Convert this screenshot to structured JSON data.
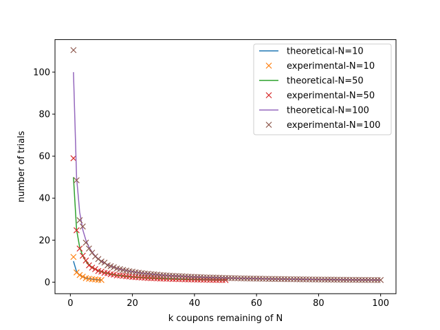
{
  "chart_data": {
    "type": "line",
    "title": "",
    "xlabel": "k coupons remaining of N",
    "ylabel": "number of trials",
    "xlim": [
      -4.95,
      104.95
    ],
    "ylim": [
      -5.5,
      115.5
    ],
    "xticks": [
      0,
      20,
      40,
      60,
      80,
      100
    ],
    "yticks": [
      0,
      20,
      40,
      60,
      80,
      100
    ],
    "grid": false,
    "legend_placement": "upper right",
    "series": [
      {
        "name": "theoretical-N=10",
        "kind": "line",
        "color": "#1f77b4",
        "rule": "N/k",
        "N": 10,
        "x_range": [
          1,
          10
        ]
      },
      {
        "name": "experimental-N=10",
        "kind": "scatter",
        "marker": "x",
        "color": "#ff7f0e",
        "x": [
          1,
          2,
          3,
          4,
          5,
          6,
          7,
          8,
          9,
          10
        ],
        "y": [
          12.0,
          4.6,
          3.4,
          2.6,
          1.9,
          1.6,
          1.4,
          1.3,
          1.1,
          1.0
        ]
      },
      {
        "name": "theoretical-N=50",
        "kind": "line",
        "color": "#2ca02c",
        "rule": "N/k",
        "N": 50,
        "x_range": [
          1,
          50
        ]
      },
      {
        "name": "experimental-N=50",
        "kind": "scatter",
        "marker": "x",
        "color": "#d62728",
        "x": [
          1,
          2,
          3,
          4,
          5,
          6,
          7,
          8,
          9,
          10,
          11,
          12,
          13,
          14,
          15,
          16,
          17,
          18,
          19,
          20,
          21,
          22,
          23,
          24,
          25,
          26,
          27,
          28,
          29,
          30,
          31,
          32,
          33,
          34,
          35,
          36,
          37,
          38,
          39,
          40,
          41,
          42,
          43,
          44,
          45,
          46,
          47,
          48,
          49,
          50
        ],
        "y": [
          59.0,
          24.7,
          16.0,
          12.6,
          10.3,
          8.0,
          6.9,
          6.2,
          5.3,
          5.0,
          4.4,
          4.3,
          3.8,
          3.6,
          3.2,
          3.2,
          3.0,
          2.8,
          2.7,
          2.5,
          2.4,
          2.3,
          2.2,
          2.1,
          2.0,
          1.9,
          1.9,
          1.8,
          1.7,
          1.7,
          1.6,
          1.6,
          1.5,
          1.5,
          1.4,
          1.4,
          1.35,
          1.3,
          1.3,
          1.25,
          1.2,
          1.2,
          1.15,
          1.15,
          1.1,
          1.1,
          1.05,
          1.05,
          1.0,
          1.0
        ]
      },
      {
        "name": "theoretical-N=100",
        "kind": "line",
        "color": "#9467bd",
        "rule": "N/k",
        "N": 100,
        "x_range": [
          1,
          100
        ]
      },
      {
        "name": "experimental-N=100",
        "kind": "scatter",
        "marker": "x",
        "color": "#8c564b",
        "x": [
          1,
          2,
          3,
          4,
          5,
          6,
          7,
          8,
          9,
          10,
          11,
          12,
          13,
          14,
          15,
          16,
          17,
          18,
          19,
          20,
          21,
          22,
          23,
          24,
          25,
          26,
          27,
          28,
          29,
          30,
          31,
          32,
          33,
          34,
          35,
          36,
          37,
          38,
          39,
          40,
          41,
          42,
          43,
          44,
          45,
          46,
          47,
          48,
          49,
          50,
          51,
          52,
          53,
          54,
          55,
          56,
          57,
          58,
          59,
          60,
          61,
          62,
          63,
          64,
          65,
          66,
          67,
          68,
          69,
          70,
          71,
          72,
          73,
          74,
          75,
          76,
          77,
          78,
          79,
          80,
          81,
          82,
          83,
          84,
          85,
          86,
          87,
          88,
          89,
          90,
          91,
          92,
          93,
          94,
          95,
          96,
          97,
          98,
          99,
          100
        ],
        "y": [
          110.5,
          48.5,
          29.5,
          26.5,
          18.8,
          16.0,
          14.0,
          12.2,
          11.0,
          9.8,
          9.3,
          8.0,
          7.6,
          7.1,
          6.5,
          6.2,
          5.8,
          5.5,
          5.2,
          5.0,
          4.7,
          4.5,
          4.3,
          4.1,
          4.0,
          3.8,
          3.7,
          3.6,
          3.4,
          3.3,
          3.2,
          3.1,
          3.0,
          2.9,
          2.85,
          2.8,
          2.7,
          2.6,
          2.55,
          2.5,
          2.45,
          2.4,
          2.3,
          2.25,
          2.2,
          2.2,
          2.15,
          2.1,
          2.05,
          2.0,
          1.95,
          1.9,
          1.9,
          1.85,
          1.8,
          1.8,
          1.75,
          1.7,
          1.7,
          1.65,
          1.65,
          1.6,
          1.6,
          1.55,
          1.55,
          1.5,
          1.5,
          1.47,
          1.45,
          1.43,
          1.4,
          1.4,
          1.37,
          1.35,
          1.33,
          1.32,
          1.3,
          1.28,
          1.27,
          1.25,
          1.24,
          1.22,
          1.21,
          1.2,
          1.18,
          1.17,
          1.15,
          1.14,
          1.12,
          1.11,
          1.1,
          1.09,
          1.08,
          1.06,
          1.05,
          1.04,
          1.03,
          1.02,
          1.01,
          1.0
        ]
      }
    ]
  }
}
